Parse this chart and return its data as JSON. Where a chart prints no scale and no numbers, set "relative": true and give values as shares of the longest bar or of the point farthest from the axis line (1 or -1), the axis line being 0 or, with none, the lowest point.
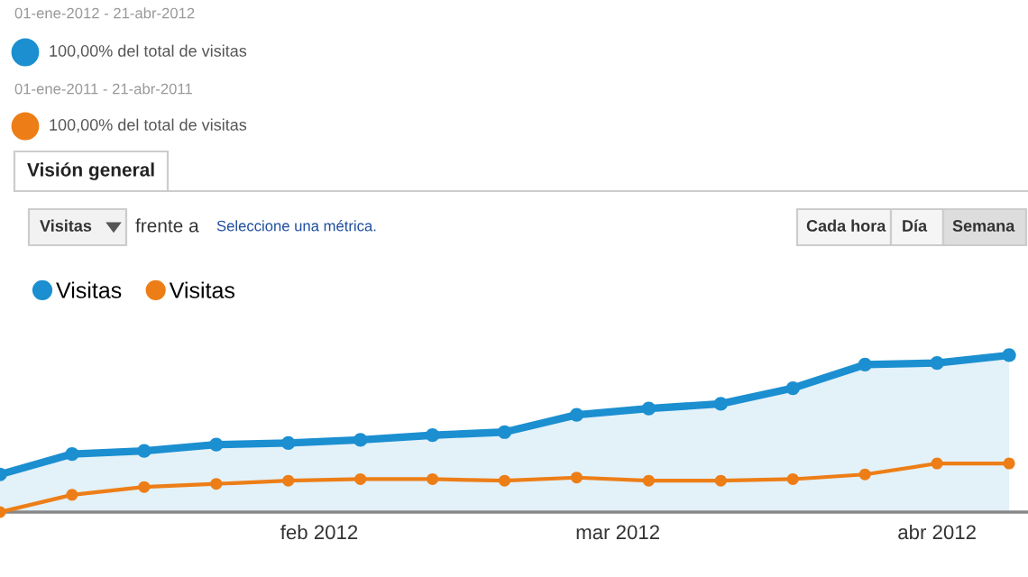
{
  "chart_data": {
    "type": "line",
    "relative": true,
    "x": [
      "2012-01-01",
      "2012-01-08",
      "2012-01-15",
      "2012-01-22",
      "2012-01-29",
      "2012-02-05",
      "2012-02-12",
      "2012-02-19",
      "2012-02-26",
      "2012-03-04",
      "2012-03-11",
      "2012-03-18",
      "2012-03-25",
      "2012-04-01",
      "2012-04-08"
    ],
    "xlim": [
      "2012-01-01",
      "2012-04-09T20:00"
    ],
    "xticks": [
      {
        "value": "2012-02-01",
        "label": "feb 2012"
      },
      {
        "value": "2012-03-01",
        "label": "mar 2012"
      },
      {
        "value": "2012-04-01",
        "label": "abr 2012"
      }
    ],
    "series": [
      {
        "name": "Visitas",
        "type": "area",
        "color": "#1b8fd0",
        "values": [
          0.24,
          0.37,
          0.39,
          0.43,
          0.44,
          0.46,
          0.49,
          0.51,
          0.62,
          0.66,
          0.69,
          0.79,
          0.94,
          0.95,
          1
        ]
      },
      {
        "name": "Visitas",
        "color": "#ed7e17",
        "values": [
          0,
          0.11,
          0.16,
          0.18,
          0.2,
          0.21,
          0.21,
          0.2,
          0.22,
          0.2,
          0.2,
          0.21,
          0.24,
          0.31,
          0.31
        ]
      }
    ],
    "marker": "circle",
    "legend": "top left",
    "annotations": [
      "01-ene-2012 - 21-abr-2012",
      "100,00% del total de visitas",
      "01-ene-2011 - 21-abr-2011",
      "100,00% del total de visitas",
      "Visión general",
      "Visitas",
      "frente a",
      "Seleccione una métrica.",
      "Cada hora",
      "Día",
      "Semana"
    ]
  }
}
